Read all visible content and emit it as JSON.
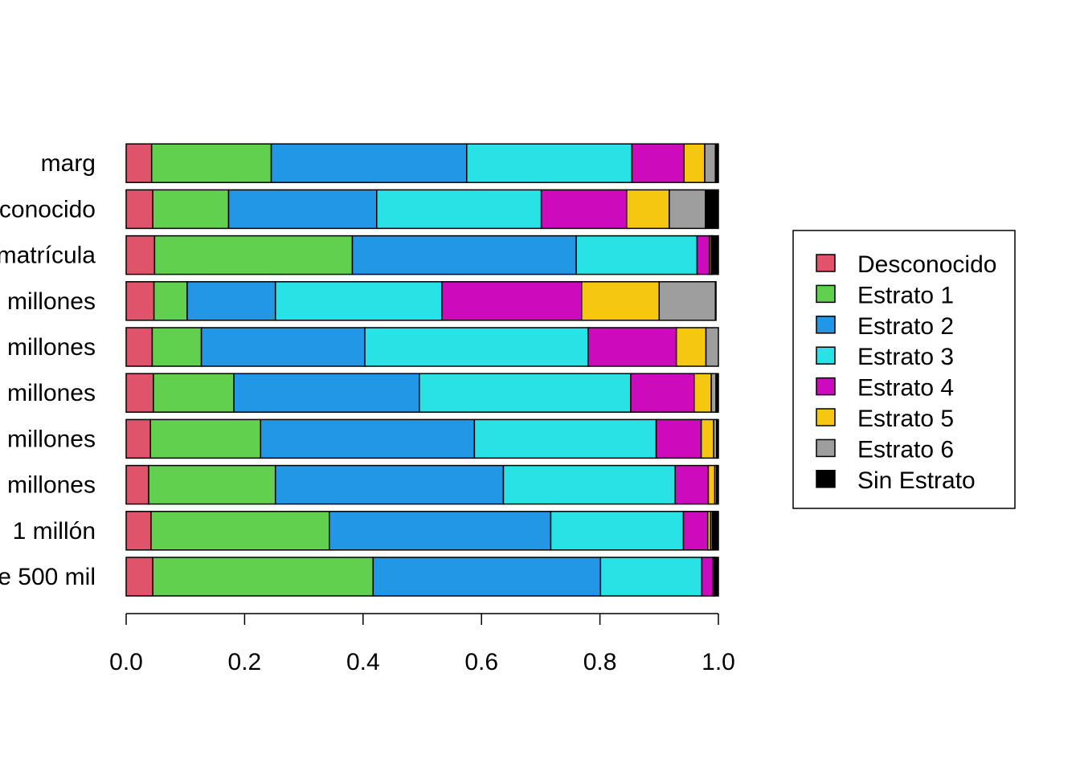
{
  "chart_data": {
    "type": "bar",
    "orientation": "horizontal",
    "stacked": true,
    "title": "",
    "xlabel": "",
    "ylabel": "",
    "xlim": [
      0,
      1
    ],
    "x_ticks": [
      "0.0",
      "0.2",
      "0.4",
      "0.6",
      "0.8",
      "1.0"
    ],
    "categories": [
      "e 500 mil",
      "1 millón",
      "millones",
      "millones",
      "millones",
      "millones",
      "millones",
      "matrícula",
      "conocido",
      "marg"
    ],
    "series": [
      {
        "name": "Desconocido",
        "color": "#DF536B",
        "values": [
          0.045,
          0.042,
          0.038,
          0.041,
          0.046,
          0.044,
          0.047,
          0.048,
          0.045,
          0.043
        ]
      },
      {
        "name": "Estrato 1",
        "color": "#61D04F",
        "values": [
          0.372,
          0.301,
          0.214,
          0.186,
          0.136,
          0.083,
          0.056,
          0.334,
          0.128,
          0.202
        ]
      },
      {
        "name": "Estrato 2",
        "color": "#2297E6",
        "values": [
          0.384,
          0.374,
          0.385,
          0.361,
          0.313,
          0.276,
          0.149,
          0.378,
          0.25,
          0.33
        ]
      },
      {
        "name": "Estrato 3",
        "color": "#28E2E5",
        "values": [
          0.171,
          0.224,
          0.29,
          0.307,
          0.357,
          0.377,
          0.281,
          0.204,
          0.278,
          0.279
        ]
      },
      {
        "name": "Estrato 4",
        "color": "#CD0BBC",
        "values": [
          0.019,
          0.041,
          0.056,
          0.076,
          0.107,
          0.149,
          0.236,
          0.021,
          0.144,
          0.088
        ]
      },
      {
        "name": "Estrato 5",
        "color": "#F5C710",
        "values": [
          0.002,
          0.005,
          0.011,
          0.021,
          0.029,
          0.05,
          0.131,
          0.003,
          0.072,
          0.035
        ]
      },
      {
        "name": "Estrato 6",
        "color": "#9E9E9E",
        "values": [
          0.001,
          0.003,
          0.003,
          0.005,
          0.008,
          0.021,
          0.095,
          0.002,
          0.061,
          0.018
        ]
      },
      {
        "name": "Sin Estrato",
        "color": "#000000",
        "values": [
          0.006,
          0.01,
          0.003,
          0.003,
          0.004,
          0.0,
          0.001,
          0.01,
          0.022,
          0.005
        ]
      }
    ],
    "grid": false,
    "legend_position": "right"
  }
}
